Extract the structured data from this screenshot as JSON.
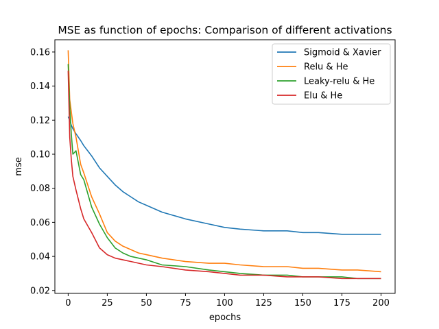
{
  "chart_data": {
    "type": "line",
    "title": "MSE as function of epochs: Comparison of different activations",
    "xlabel": "epochs",
    "ylabel": "mse",
    "xlim": [
      -8.5,
      209
    ],
    "ylim": [
      0.0183,
      0.1672
    ],
    "xticks": [
      0,
      25,
      50,
      75,
      100,
      125,
      150,
      175,
      200
    ],
    "xtick_labels": [
      "0",
      "25",
      "50",
      "75",
      "100",
      "125",
      "150",
      "175",
      "200"
    ],
    "yticks": [
      0.02,
      0.04,
      0.06,
      0.08,
      0.1,
      0.12,
      0.14,
      0.16
    ],
    "ytick_labels": [
      "0.02",
      "0.04",
      "0.06",
      "0.08",
      "0.10",
      "0.12",
      "0.14",
      "0.16"
    ],
    "grid": false,
    "legend_position": "top-right",
    "x": [
      0,
      1,
      2,
      3,
      5,
      8,
      10,
      15,
      20,
      25,
      30,
      35,
      40,
      45,
      50,
      60,
      75,
      90,
      100,
      110,
      125,
      140,
      150,
      160,
      175,
      185,
      200
    ],
    "series": [
      {
        "name": "Sigmoid & Xavier",
        "color": "#1f77b4",
        "values": [
          0.122,
          0.12,
          0.117,
          0.115,
          0.112,
          0.108,
          0.105,
          0.099,
          0.092,
          0.087,
          0.082,
          0.078,
          0.075,
          0.072,
          0.07,
          0.066,
          0.062,
          0.059,
          0.057,
          0.056,
          0.055,
          0.055,
          0.054,
          0.054,
          0.053,
          0.053,
          0.053
        ]
      },
      {
        "name": "Relu & He",
        "color": "#ff7f0e",
        "values": [
          0.161,
          0.132,
          0.125,
          0.118,
          0.11,
          0.094,
          0.089,
          0.075,
          0.065,
          0.054,
          0.049,
          0.046,
          0.044,
          0.042,
          0.041,
          0.039,
          0.037,
          0.036,
          0.036,
          0.035,
          0.034,
          0.034,
          0.033,
          0.033,
          0.032,
          0.032,
          0.031
        ]
      },
      {
        "name": "Leaky-relu & He",
        "color": "#2ca02c",
        "values": [
          0.153,
          0.128,
          0.112,
          0.1,
          0.102,
          0.088,
          0.085,
          0.069,
          0.059,
          0.051,
          0.045,
          0.042,
          0.04,
          0.039,
          0.038,
          0.035,
          0.034,
          0.032,
          0.031,
          0.03,
          0.029,
          0.029,
          0.028,
          0.028,
          0.028,
          0.027,
          0.027
        ]
      },
      {
        "name": "Elu & He",
        "color": "#d62728",
        "values": [
          0.149,
          0.11,
          0.097,
          0.087,
          0.079,
          0.068,
          0.062,
          0.054,
          0.045,
          0.041,
          0.039,
          0.038,
          0.037,
          0.036,
          0.035,
          0.034,
          0.032,
          0.031,
          0.03,
          0.029,
          0.029,
          0.028,
          0.028,
          0.028,
          0.027,
          0.027,
          0.027
        ]
      }
    ]
  }
}
